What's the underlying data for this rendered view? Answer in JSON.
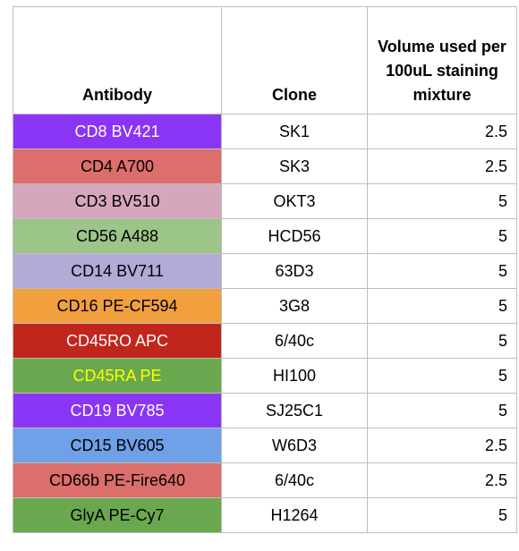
{
  "headers": {
    "antibody": "Antibody",
    "clone": "Clone",
    "volume": "Volume used per 100uL staining mixture"
  },
  "rows": [
    {
      "antibody": "CD8 BV421",
      "clone": "SK1",
      "volume": "2.5",
      "bg": "#8a35f5",
      "fg": "#ffffff"
    },
    {
      "antibody": "CD4 A700",
      "clone": "SK3",
      "volume": "2.5",
      "bg": "#dc6e6b",
      "fg": "#000000"
    },
    {
      "antibody": "CD3 BV510",
      "clone": "OKT3",
      "volume": "5",
      "bg": "#d5a7bc",
      "fg": "#000000"
    },
    {
      "antibody": "CD56 A488",
      "clone": "HCD56",
      "volume": "5",
      "bg": "#9bc589",
      "fg": "#000000"
    },
    {
      "antibody": "CD14 BV711",
      "clone": "63D3",
      "volume": "5",
      "bg": "#b3aad8",
      "fg": "#000000"
    },
    {
      "antibody": "CD16 PE-CF594",
      "clone": "3G8",
      "volume": "5",
      "bg": "#f2a03d",
      "fg": "#000000"
    },
    {
      "antibody": "CD45RO APC",
      "clone": "6/40c",
      "volume": "5",
      "bg": "#c1261d",
      "fg": "#ffffff"
    },
    {
      "antibody": "CD45RA PE",
      "clone": "HI100",
      "volume": "5",
      "bg": "#6aa84f",
      "fg": "#ffff00"
    },
    {
      "antibody": "CD19 BV785",
      "clone": "SJ25C1",
      "volume": "5",
      "bg": "#8a35f5",
      "fg": "#ffffff"
    },
    {
      "antibody": "CD15 BV605",
      "clone": "W6D3",
      "volume": "2.5",
      "bg": "#6fa0e8",
      "fg": "#000000"
    },
    {
      "antibody": "CD66b PE-Fire640",
      "clone": "6/40c",
      "volume": "2.5",
      "bg": "#dc6e6b",
      "fg": "#000000"
    },
    {
      "antibody": "GlyA PE-Cy7",
      "clone": "H1264",
      "volume": "5",
      "bg": "#6aa84f",
      "fg": "#000000"
    }
  ]
}
